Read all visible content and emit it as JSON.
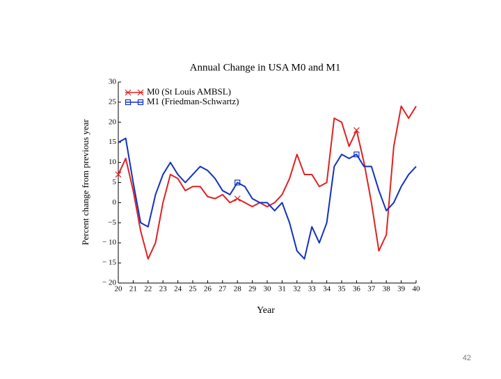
{
  "chart_data": {
    "type": "line",
    "title": "Annual Change in USA M0 and M1",
    "x_label": "Year",
    "y_label": "Percent change from previous year",
    "x": [
      20,
      20.5,
      21,
      21.5,
      22,
      22.5,
      23,
      23.5,
      24,
      24.5,
      25,
      25.5,
      26,
      26.5,
      27,
      27.5,
      28,
      28.5,
      29,
      29.5,
      30,
      30.5,
      31,
      31.5,
      32,
      32.5,
      33,
      33.5,
      34,
      34.5,
      35,
      35.5,
      36,
      36.5,
      37,
      37.5,
      38,
      38.5,
      39,
      39.5,
      40
    ],
    "series": [
      {
        "name": "M0 (St Louis AMBSL)",
        "color": "#e02020",
        "marker": "x",
        "values": [
          7,
          11,
          3,
          -7,
          -14,
          -10,
          0,
          7,
          6,
          3,
          4,
          4,
          1.5,
          1,
          2,
          0,
          1,
          0,
          -1,
          0,
          -1,
          0,
          2,
          6,
          12,
          7,
          7,
          4,
          5,
          21,
          20,
          14,
          18,
          10,
          0,
          -12,
          -8,
          14,
          24,
          21,
          24
        ]
      },
      {
        "name": "M1 (Friedman-Schwartz)",
        "color": "#1030c0",
        "marker": "square",
        "values": [
          15,
          16,
          5,
          -5,
          -6,
          2,
          7,
          10,
          7,
          5,
          7,
          9,
          8,
          6,
          3,
          2,
          5,
          4,
          1,
          0,
          0,
          -2,
          0,
          -5,
          -12,
          -14,
          -6,
          -10,
          -5,
          9,
          12,
          11,
          12,
          9,
          9,
          3,
          -2,
          0,
          4,
          7,
          9
        ]
      }
    ],
    "xlim": [
      20,
      40
    ],
    "xticks": [
      20,
      21,
      22,
      23,
      24,
      25,
      26,
      27,
      28,
      29,
      30,
      31,
      32,
      33,
      34,
      35,
      36,
      37,
      38,
      39,
      40
    ],
    "ylim": [
      -20,
      30
    ],
    "yticks": [
      {
        "value": -20,
        "label": "− 20"
      },
      {
        "value": -15,
        "label": "− 15"
      },
      {
        "value": -10,
        "label": "− 10"
      },
      {
        "value": -5,
        "label": "−5"
      },
      0,
      5,
      10,
      15,
      20,
      25,
      30
    ],
    "legend": "upper left",
    "page_number": "42"
  }
}
